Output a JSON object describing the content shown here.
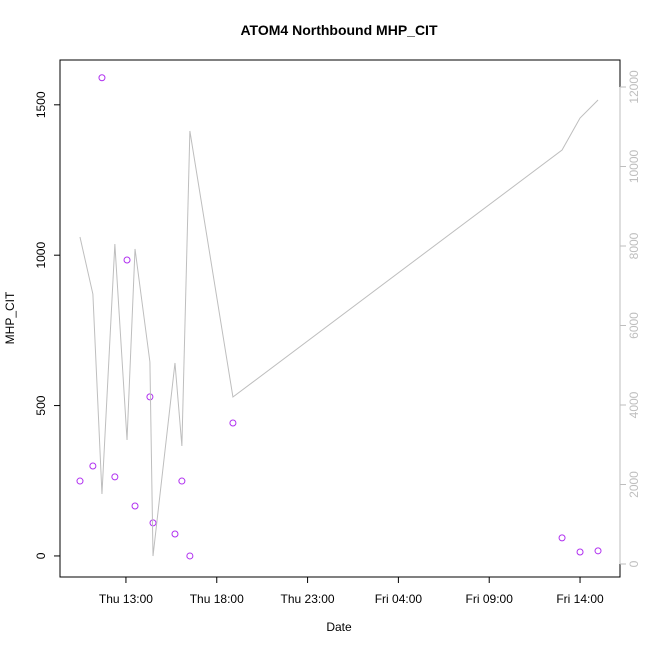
{
  "chart_data": {
    "type": "scatter",
    "title": "ATOM4 Northbound MHP_CIT",
    "xlabel": "Date",
    "ylabel": "MHP_CIT",
    "x": [
      10.47,
      11.18,
      11.68,
      12.39,
      13.06,
      13.5,
      14.32,
      14.49,
      15.7,
      16.08,
      16.52,
      18.89,
      37.01,
      38.0,
      38.99
    ],
    "series": [
      {
        "type": "scatter",
        "color": "#b030f0",
        "values": [
          249,
          299,
          1590,
          263,
          984,
          166,
          529,
          110,
          73,
          249,
          0,
          442,
          60,
          13,
          17
        ]
      },
      {
        "type": "line",
        "axis": "y2",
        "color": "#bebebe",
        "values": [
          8226,
          6792,
          1761,
          8050,
          3119,
          7925,
          5082,
          201,
          5057,
          2969,
          10893,
          4201,
          10415,
          11220,
          11673
        ]
      }
    ],
    "xlim": [
      9.37,
      40.2
    ],
    "xticks": [
      {
        "value": 13,
        "label": "Thu 13:00"
      },
      {
        "value": 18,
        "label": "Thu 18:00"
      },
      {
        "value": 23,
        "label": "Thu 23:00"
      },
      {
        "value": 28,
        "label": "Fri 04:00"
      },
      {
        "value": 33,
        "label": "Fri 09:00"
      },
      {
        "value": 38,
        "label": "Fri 14:00"
      }
    ],
    "ylim": [
      -70,
      1649
    ],
    "yticks": [
      0,
      500,
      1000,
      1500
    ],
    "y2lim": [
      -327,
      12679
    ],
    "y2ticks": [
      0,
      2000,
      4000,
      6000,
      8000,
      10000,
      12000
    ],
    "y2color": "#bebebe"
  }
}
